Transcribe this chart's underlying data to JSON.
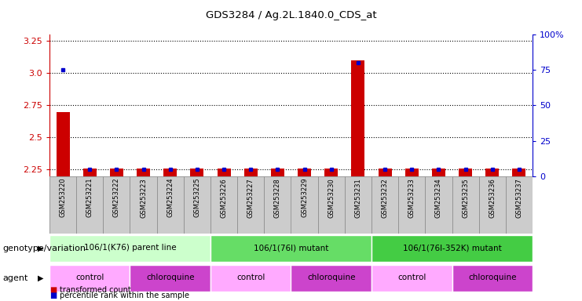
{
  "title": "GDS3284 / Ag.2L.1840.0_CDS_at",
  "samples": [
    "GSM253220",
    "GSM253221",
    "GSM253222",
    "GSM253223",
    "GSM253224",
    "GSM253225",
    "GSM253226",
    "GSM253227",
    "GSM253228",
    "GSM253229",
    "GSM253230",
    "GSM253231",
    "GSM253232",
    "GSM253233",
    "GSM253234",
    "GSM253235",
    "GSM253236",
    "GSM253237"
  ],
  "transformed_count": [
    2.7,
    2.26,
    2.26,
    2.26,
    2.26,
    2.26,
    2.26,
    2.26,
    2.26,
    2.26,
    2.26,
    3.1,
    2.26,
    2.26,
    2.26,
    2.26,
    2.26,
    2.26
  ],
  "percentile_rank": [
    75,
    5,
    5,
    5,
    5,
    5,
    5,
    5,
    5,
    5,
    5,
    80,
    5,
    5,
    5,
    5,
    5,
    5
  ],
  "ylim_left": [
    2.2,
    3.3
  ],
  "ylim_right": [
    0,
    100
  ],
  "yticks_left": [
    2.25,
    2.5,
    2.75,
    3.0,
    3.25
  ],
  "yticks_right": [
    0,
    25,
    50,
    75,
    100
  ],
  "ytick_labels_right": [
    "0",
    "25",
    "50",
    "75",
    "100%"
  ],
  "bar_color": "#cc0000",
  "dot_color": "#0000cc",
  "genotype_groups": [
    {
      "label": "106/1(K76) parent line",
      "start": 0,
      "end": 5,
      "color": "#ccffcc"
    },
    {
      "label": "106/1(76I) mutant",
      "start": 6,
      "end": 11,
      "color": "#66dd66"
    },
    {
      "label": "106/1(76I-352K) mutant",
      "start": 12,
      "end": 17,
      "color": "#44cc44"
    }
  ],
  "agent_groups": [
    {
      "label": "control",
      "start": 0,
      "end": 2,
      "color": "#ffaaff"
    },
    {
      "label": "chloroquine",
      "start": 3,
      "end": 5,
      "color": "#cc44cc"
    },
    {
      "label": "control",
      "start": 6,
      "end": 8,
      "color": "#ffaaff"
    },
    {
      "label": "chloroquine",
      "start": 9,
      "end": 11,
      "color": "#cc44cc"
    },
    {
      "label": "control",
      "start": 12,
      "end": 14,
      "color": "#ffaaff"
    },
    {
      "label": "chloroquine",
      "start": 15,
      "end": 17,
      "color": "#cc44cc"
    }
  ],
  "legend_bar_color": "#cc0000",
  "legend_dot_color": "#0000cc",
  "legend_bar_label": "transformed count",
  "legend_dot_label": "percentile rank within the sample",
  "genotype_label": "genotype/variation",
  "agent_label": "agent",
  "background_color": "#ffffff"
}
